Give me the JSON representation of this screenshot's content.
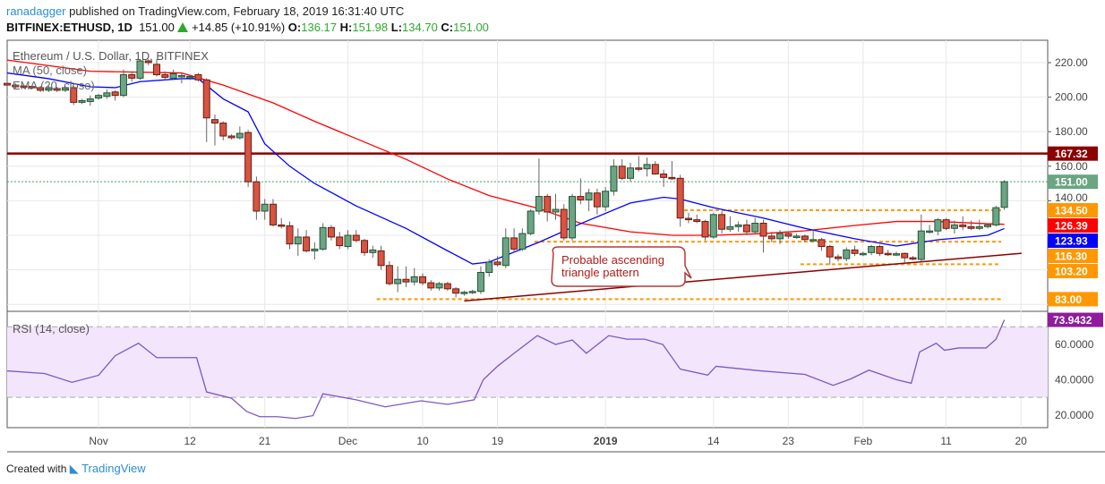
{
  "header": {
    "user": "ranadagger",
    "published": "published on TradingView.com, February 18, 2019 16:31:40 UTC",
    "symbol": "BITFINEX:ETHUSD, 1D",
    "last": "151.00",
    "change": "+14.85 (+10.91%)",
    "o_label": "O:",
    "o": "136.17",
    "h_label": "H:",
    "h": "151.98",
    "l_label": "L:",
    "l": "134.70",
    "c_label": "C:",
    "c": "151.00"
  },
  "legend": {
    "title": "Ethereum / U.S. Dollar, 1D, BITFINEX",
    "ma": "MA (50, close)",
    "ema": "EMA (20, close)",
    "rsi": "RSI (14, close)"
  },
  "footer": {
    "created": "Created with",
    "brand": "TradingView"
  },
  "colors": {
    "up": "#6ba583",
    "down": "#d75442",
    "ma": "#ff0000",
    "ema": "#0000ff",
    "resistance": "#8b0000",
    "support": "#ff9800",
    "rsi": "#7e57c2",
    "rsi_band": "#f3e5fc"
  },
  "chart_data": {
    "type": "candlestick",
    "price_ylim": [
      72,
      230
    ],
    "price_ticks": [
      "220.00",
      "200.00",
      "180.00",
      "160.00",
      "140.00"
    ],
    "price_tick_values": [
      220,
      200,
      180,
      160,
      140
    ],
    "x_ticks": [
      [
        "Nov",
        11
      ],
      [
        "12",
        22
      ],
      [
        "21",
        31
      ],
      [
        "Dec",
        41
      ],
      [
        "10",
        50
      ],
      [
        "19",
        59
      ],
      [
        "2019",
        72
      ],
      [
        "14",
        85
      ],
      [
        "23",
        94
      ],
      [
        "Feb",
        103
      ],
      [
        "11",
        113
      ],
      [
        "20",
        122
      ]
    ],
    "candles": [
      [
        208,
        209.5,
        206,
        207
      ],
      [
        207,
        208,
        205,
        206
      ],
      [
        206.5,
        207.5,
        205,
        206
      ],
      [
        206.2,
        207,
        204.5,
        205.7
      ],
      [
        205.5,
        206.5,
        203,
        204
      ],
      [
        204,
        206.5,
        203,
        205.5
      ],
      [
        205,
        206,
        203,
        204
      ],
      [
        204,
        206.5,
        203,
        205.5
      ],
      [
        205.5,
        206.5,
        195.5,
        197
      ],
      [
        197,
        199,
        196,
        198
      ],
      [
        197.5,
        201,
        195,
        199
      ],
      [
        199.5,
        202,
        198.5,
        201
      ],
      [
        200.5,
        204.5,
        199,
        202.5
      ],
      [
        203,
        204,
        198,
        201
      ],
      [
        201,
        216,
        200,
        213
      ],
      [
        213,
        215,
        209,
        211
      ],
      [
        211,
        222,
        210,
        221
      ],
      [
        221,
        222,
        218.5,
        220
      ],
      [
        219,
        222,
        212,
        213
      ],
      [
        213,
        215,
        210,
        211.5
      ],
      [
        211,
        216,
        210,
        213.5
      ],
      [
        212.5,
        214,
        208,
        212.5
      ],
      [
        212,
        213,
        210,
        212
      ],
      [
        213,
        214,
        209,
        210
      ],
      [
        210,
        211,
        174,
        188
      ],
      [
        187,
        190,
        172,
        185
      ],
      [
        185,
        186,
        175,
        177.5
      ],
      [
        177.5,
        178.5,
        175.5,
        176.5
      ],
      [
        176.5,
        183,
        175.5,
        179
      ],
      [
        179.5,
        181,
        148,
        151
      ],
      [
        151,
        154,
        129,
        134
      ],
      [
        134,
        141,
        129,
        138
      ],
      [
        138,
        141,
        125,
        126
      ],
      [
        126,
        130,
        124,
        125.5
      ],
      [
        125.5,
        128,
        112,
        115
      ],
      [
        115,
        124,
        108,
        119
      ],
      [
        119,
        123,
        110,
        111
      ],
      [
        111,
        116,
        106,
        112
      ],
      [
        112,
        127,
        111,
        124.5
      ],
      [
        124.5,
        126,
        117,
        119
      ],
      [
        119,
        122,
        112,
        114
      ],
      [
        113.5,
        123,
        112,
        120
      ],
      [
        120,
        123,
        116,
        117
      ],
      [
        117,
        118,
        108,
        110
      ],
      [
        110,
        114,
        107,
        111.5
      ],
      [
        111,
        114,
        100,
        102.5
      ],
      [
        102.5,
        105,
        91,
        92
      ],
      [
        92,
        102,
        87,
        94.5
      ],
      [
        94.5,
        102,
        90,
        93
      ],
      [
        93,
        101,
        91,
        96
      ],
      [
        96,
        98,
        91,
        92.5
      ],
      [
        92.5,
        94,
        88,
        89.5
      ],
      [
        89.5,
        93,
        88,
        92
      ],
      [
        92,
        93,
        88,
        89
      ],
      [
        89,
        90,
        84,
        86.5
      ],
      [
        87,
        88,
        85,
        87
      ],
      [
        87,
        88.5,
        86,
        87.5
      ],
      [
        87.5,
        102,
        86,
        98.5
      ],
      [
        98.5,
        106,
        96,
        104.5
      ],
      [
        104.5,
        108,
        102,
        103
      ],
      [
        102.5,
        124,
        101,
        118.5
      ],
      [
        118.5,
        124,
        110,
        112
      ],
      [
        112,
        124,
        111,
        121
      ],
      [
        121,
        135,
        120,
        134
      ],
      [
        134,
        164.5,
        132,
        142.5
      ],
      [
        142.5,
        144,
        128,
        133.5
      ],
      [
        133.5,
        144,
        129,
        135
      ],
      [
        135,
        138,
        117,
        118.5
      ],
      [
        118.5,
        144,
        117,
        142.5
      ],
      [
        142.5,
        153,
        138,
        140.5
      ],
      [
        140.5,
        147,
        134,
        144.5
      ],
      [
        144.5,
        147,
        132,
        136.5
      ],
      [
        136.5,
        148,
        134,
        145.5
      ],
      [
        145.5,
        164,
        143,
        160
      ],
      [
        160,
        164,
        152,
        153
      ],
      [
        153,
        162,
        151,
        159
      ],
      [
        159,
        166,
        157,
        158.5
      ],
      [
        158.5,
        165,
        154,
        161
      ],
      [
        161,
        163,
        155,
        155.5
      ],
      [
        155.5,
        158,
        148,
        153.5
      ],
      [
        153.5,
        163,
        152,
        153
      ],
      [
        153,
        155,
        125,
        130
      ],
      [
        129.8,
        133,
        127,
        129.5
      ],
      [
        129,
        132,
        127,
        128
      ],
      [
        128,
        129,
        117,
        119
      ],
      [
        119,
        133,
        118,
        132
      ],
      [
        132,
        134,
        121,
        123.5
      ],
      [
        123.5,
        131,
        122,
        125
      ],
      [
        125,
        128,
        122,
        126
      ],
      [
        126,
        129,
        120,
        122
      ],
      [
        122,
        130,
        121,
        127
      ],
      [
        127,
        129,
        110,
        119.5
      ],
      [
        119.5,
        122,
        116,
        118
      ],
      [
        118,
        123,
        115,
        121
      ],
      [
        121,
        122,
        118,
        119.5
      ],
      [
        119.5,
        121,
        118,
        119.5
      ],
      [
        119.5,
        120.5,
        116,
        117.5
      ],
      [
        117.5,
        123,
        116.5,
        117.5
      ],
      [
        117.5,
        118.5,
        111,
        113.5
      ],
      [
        113.5,
        114.5,
        103,
        107.5
      ],
      [
        107.5,
        109,
        105,
        106.5
      ],
      [
        106.5,
        113,
        105,
        111.5
      ],
      [
        111.5,
        114,
        108,
        109.5
      ],
      [
        109.5,
        110.5,
        108,
        109.5
      ],
      [
        110,
        114.5,
        108.5,
        113.5
      ],
      [
        113.5,
        114.5,
        108,
        109.5
      ],
      [
        109.5,
        111.5,
        108,
        109
      ],
      [
        109,
        110.5,
        108,
        109.3
      ],
      [
        109.5,
        110,
        104,
        107
      ],
      [
        107,
        108,
        105.5,
        106.5
      ],
      [
        106,
        132,
        105,
        122.5
      ],
      [
        122.5,
        126,
        121,
        122.5
      ],
      [
        122.5,
        130,
        120,
        129
      ],
      [
        129,
        130,
        123,
        124
      ],
      [
        124,
        128.5,
        121,
        126
      ],
      [
        126,
        131,
        123,
        125
      ],
      [
        125,
        128.5,
        123,
        124
      ],
      [
        124,
        129,
        123,
        125
      ],
      [
        125,
        127,
        124,
        126
      ],
      [
        126,
        137,
        125,
        136
      ],
      [
        136.17,
        151.98,
        134.7,
        151
      ]
    ],
    "ma50": [
      [
        0,
        221.5
      ],
      [
        10,
        215
      ],
      [
        21,
        214
      ],
      [
        26,
        207
      ],
      [
        32,
        196.7
      ],
      [
        37,
        186
      ],
      [
        42,
        176
      ],
      [
        48,
        164
      ],
      [
        53,
        152.6
      ],
      [
        58,
        143
      ],
      [
        64,
        135.5
      ],
      [
        69,
        127
      ],
      [
        75,
        122
      ],
      [
        80,
        120
      ],
      [
        85,
        120
      ],
      [
        91,
        121
      ],
      [
        96,
        122.6
      ],
      [
        102,
        125.7
      ],
      [
        107,
        128
      ],
      [
        112,
        128
      ],
      [
        118,
        126.7
      ],
      [
        120,
        126.39
      ]
    ],
    "ema20": [
      [
        0,
        214
      ],
      [
        5,
        210.7
      ],
      [
        10,
        206
      ],
      [
        13,
        205.5
      ],
      [
        16,
        209
      ],
      [
        21,
        210.7
      ],
      [
        23,
        210.7
      ],
      [
        26,
        199
      ],
      [
        29,
        191.5
      ],
      [
        31,
        173
      ],
      [
        34,
        160
      ],
      [
        37,
        150
      ],
      [
        42,
        137
      ],
      [
        48,
        124
      ],
      [
        53,
        111
      ],
      [
        56,
        103.4
      ],
      [
        58,
        104.5
      ],
      [
        64,
        116
      ],
      [
        69,
        126.7
      ],
      [
        75,
        138.7
      ],
      [
        79,
        142
      ],
      [
        81,
        141
      ],
      [
        85,
        136
      ],
      [
        91,
        130
      ],
      [
        96,
        124
      ],
      [
        102,
        118
      ],
      [
        107,
        113.8
      ],
      [
        112,
        117.4
      ],
      [
        118,
        120
      ],
      [
        120,
        123.93
      ]
    ],
    "levels": [
      {
        "label": "167.32",
        "value": 167.32,
        "style": "resistance",
        "from": 0
      },
      {
        "label": "134.50",
        "value": 134.5,
        "style": "support",
        "from": 82
      },
      {
        "label": "116.30",
        "value": 116.3,
        "style": "support",
        "from": 64
      },
      {
        "label": "103.20",
        "value": 103.2,
        "style": "support",
        "from": 96
      },
      {
        "label": "83.00",
        "value": 83,
        "style": "support",
        "from": 45
      }
    ],
    "last_price": {
      "label": "151.00",
      "value": 151
    },
    "ma_label": {
      "label": "126.39",
      "value": 126.39
    },
    "ema_label": {
      "label": "123.93",
      "value": 123.93
    },
    "trendline": [
      [
        55,
        82
      ],
      [
        121,
        109.6
      ]
    ],
    "annotation": {
      "line1": "Probable ascending",
      "line2": "triangle pattern"
    },
    "rsi": {
      "ylim": [
        10,
        84
      ],
      "band": [
        30,
        70
      ],
      "ticks": [
        "60.0000",
        "40.0000",
        "20.0000"
      ],
      "tick_values": [
        60,
        40,
        20
      ],
      "last_label": "73.9432",
      "values": [
        [
          0,
          45
        ],
        [
          4.5,
          43.5
        ],
        [
          7.8,
          38.5
        ],
        [
          11,
          42.5
        ],
        [
          13,
          53.6
        ],
        [
          15.8,
          60.7
        ],
        [
          18,
          52.5
        ],
        [
          20.7,
          52.5
        ],
        [
          22.8,
          52.5
        ],
        [
          24,
          33
        ],
        [
          27,
          29.5
        ],
        [
          28.8,
          22
        ],
        [
          30.4,
          19
        ],
        [
          32.5,
          19
        ],
        [
          34.7,
          18
        ],
        [
          36.8,
          19.6
        ],
        [
          38,
          32
        ],
        [
          42,
          28.6
        ],
        [
          45.5,
          24.6
        ],
        [
          49.8,
          28
        ],
        [
          53,
          26
        ],
        [
          56.2,
          28.6
        ],
        [
          57.3,
          40
        ],
        [
          59,
          47.6
        ],
        [
          61,
          55
        ],
        [
          63.8,
          65
        ],
        [
          66,
          60
        ],
        [
          68,
          62.5
        ],
        [
          69.7,
          55
        ],
        [
          72.4,
          65
        ],
        [
          74.6,
          63
        ],
        [
          76.7,
          63
        ],
        [
          78.9,
          60
        ],
        [
          81,
          46
        ],
        [
          84.3,
          42.6
        ],
        [
          85.3,
          47.6
        ],
        [
          90.7,
          45
        ],
        [
          96,
          43
        ],
        [
          99.4,
          36.8
        ],
        [
          101.5,
          40.4
        ],
        [
          103.7,
          45.4
        ],
        [
          107,
          40
        ],
        [
          108.8,
          38
        ],
        [
          109.8,
          55.7
        ],
        [
          111.8,
          60.7
        ],
        [
          112.8,
          56.7
        ],
        [
          114.5,
          58
        ],
        [
          117.8,
          58
        ],
        [
          119,
          63
        ],
        [
          120,
          73.9432
        ]
      ]
    }
  }
}
